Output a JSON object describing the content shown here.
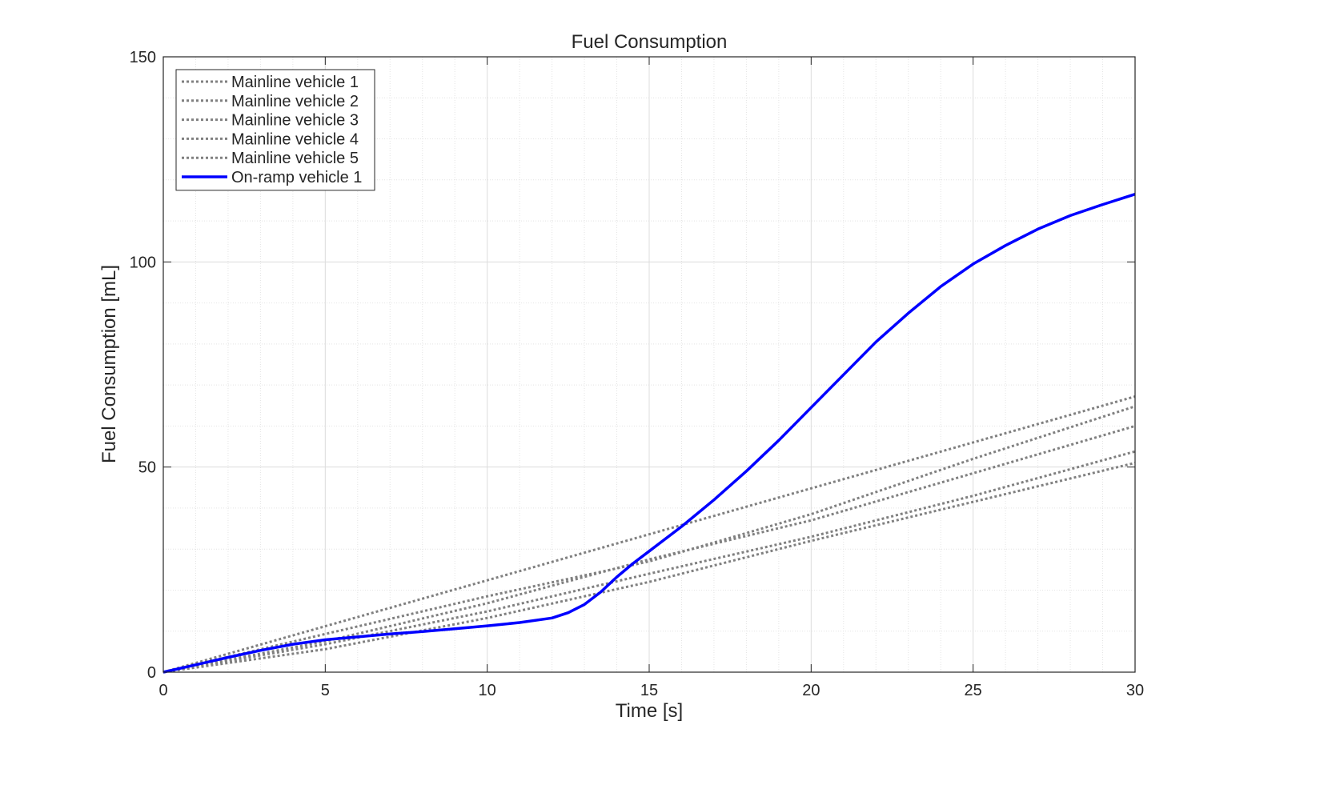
{
  "chart_data": {
    "type": "line",
    "title": "Fuel Consumption",
    "xlabel": "Time [s]",
    "ylabel": "Fuel Consumption [mL]",
    "xlim": [
      0,
      30
    ],
    "ylim": [
      0,
      150
    ],
    "xticks": [
      0,
      5,
      10,
      15,
      20,
      25,
      30
    ],
    "yticks": [
      0,
      50,
      100,
      150
    ],
    "xtick_labels": [
      "0",
      "5",
      "10",
      "15",
      "20",
      "25",
      "30"
    ],
    "ytick_labels": [
      "0",
      "50",
      "100",
      "150"
    ],
    "grid": true,
    "minor_grid": true,
    "legend_position": "top-left",
    "series": [
      {
        "name": "Mainline vehicle 1",
        "color": "#808080",
        "style": "dotted",
        "x": [
          0,
          5,
          10,
          15,
          20,
          25,
          30
        ],
        "y": [
          0,
          11.2,
          22.4,
          33.6,
          44.8,
          56.0,
          67.2
        ]
      },
      {
        "name": "Mainline vehicle 2",
        "color": "#808080",
        "style": "dotted",
        "x": [
          0,
          5,
          10,
          15,
          20,
          25,
          30
        ],
        "y": [
          0,
          9.3,
          18.5,
          27.0,
          38.5,
          52.0,
          64.8
        ]
      },
      {
        "name": "Mainline vehicle 3",
        "color": "#808080",
        "style": "dotted",
        "x": [
          0,
          5,
          10,
          15,
          20,
          25,
          30
        ],
        "y": [
          0,
          7.5,
          16.8,
          27.5,
          37.0,
          48.5,
          60.0
        ]
      },
      {
        "name": "Mainline vehicle 4",
        "color": "#808080",
        "style": "dotted",
        "x": [
          0,
          5,
          10,
          15,
          20,
          25,
          30
        ],
        "y": [
          0,
          6.8,
          14.8,
          24.0,
          33.0,
          43.0,
          53.8
        ]
      },
      {
        "name": "Mainline vehicle 5",
        "color": "#808080",
        "style": "dotted",
        "x": [
          0,
          5,
          10,
          15,
          20,
          25,
          30
        ],
        "y": [
          0,
          5.6,
          13.2,
          22.0,
          32.0,
          41.5,
          51.0
        ]
      },
      {
        "name": "On-ramp vehicle 1",
        "color": "#0000ff",
        "style": "solid",
        "x": [
          0,
          1,
          2,
          3,
          4,
          5,
          6,
          7,
          8,
          9,
          10,
          11,
          12,
          12.5,
          13,
          13.5,
          14,
          14.5,
          15,
          16,
          17,
          18,
          19,
          20,
          21,
          22,
          23,
          24,
          25,
          26,
          27,
          28,
          29,
          30
        ],
        "y": [
          0,
          1.8,
          3.6,
          5.3,
          6.8,
          7.9,
          8.6,
          9.3,
          9.9,
          10.6,
          11.3,
          12.1,
          13.2,
          14.5,
          16.5,
          19.5,
          23.2,
          26.5,
          29.5,
          35.5,
          42.0,
          49.0,
          56.5,
          64.5,
          72.5,
          80.5,
          87.5,
          94.0,
          99.5,
          104.0,
          108.0,
          111.3,
          114.0,
          116.5
        ]
      }
    ]
  }
}
